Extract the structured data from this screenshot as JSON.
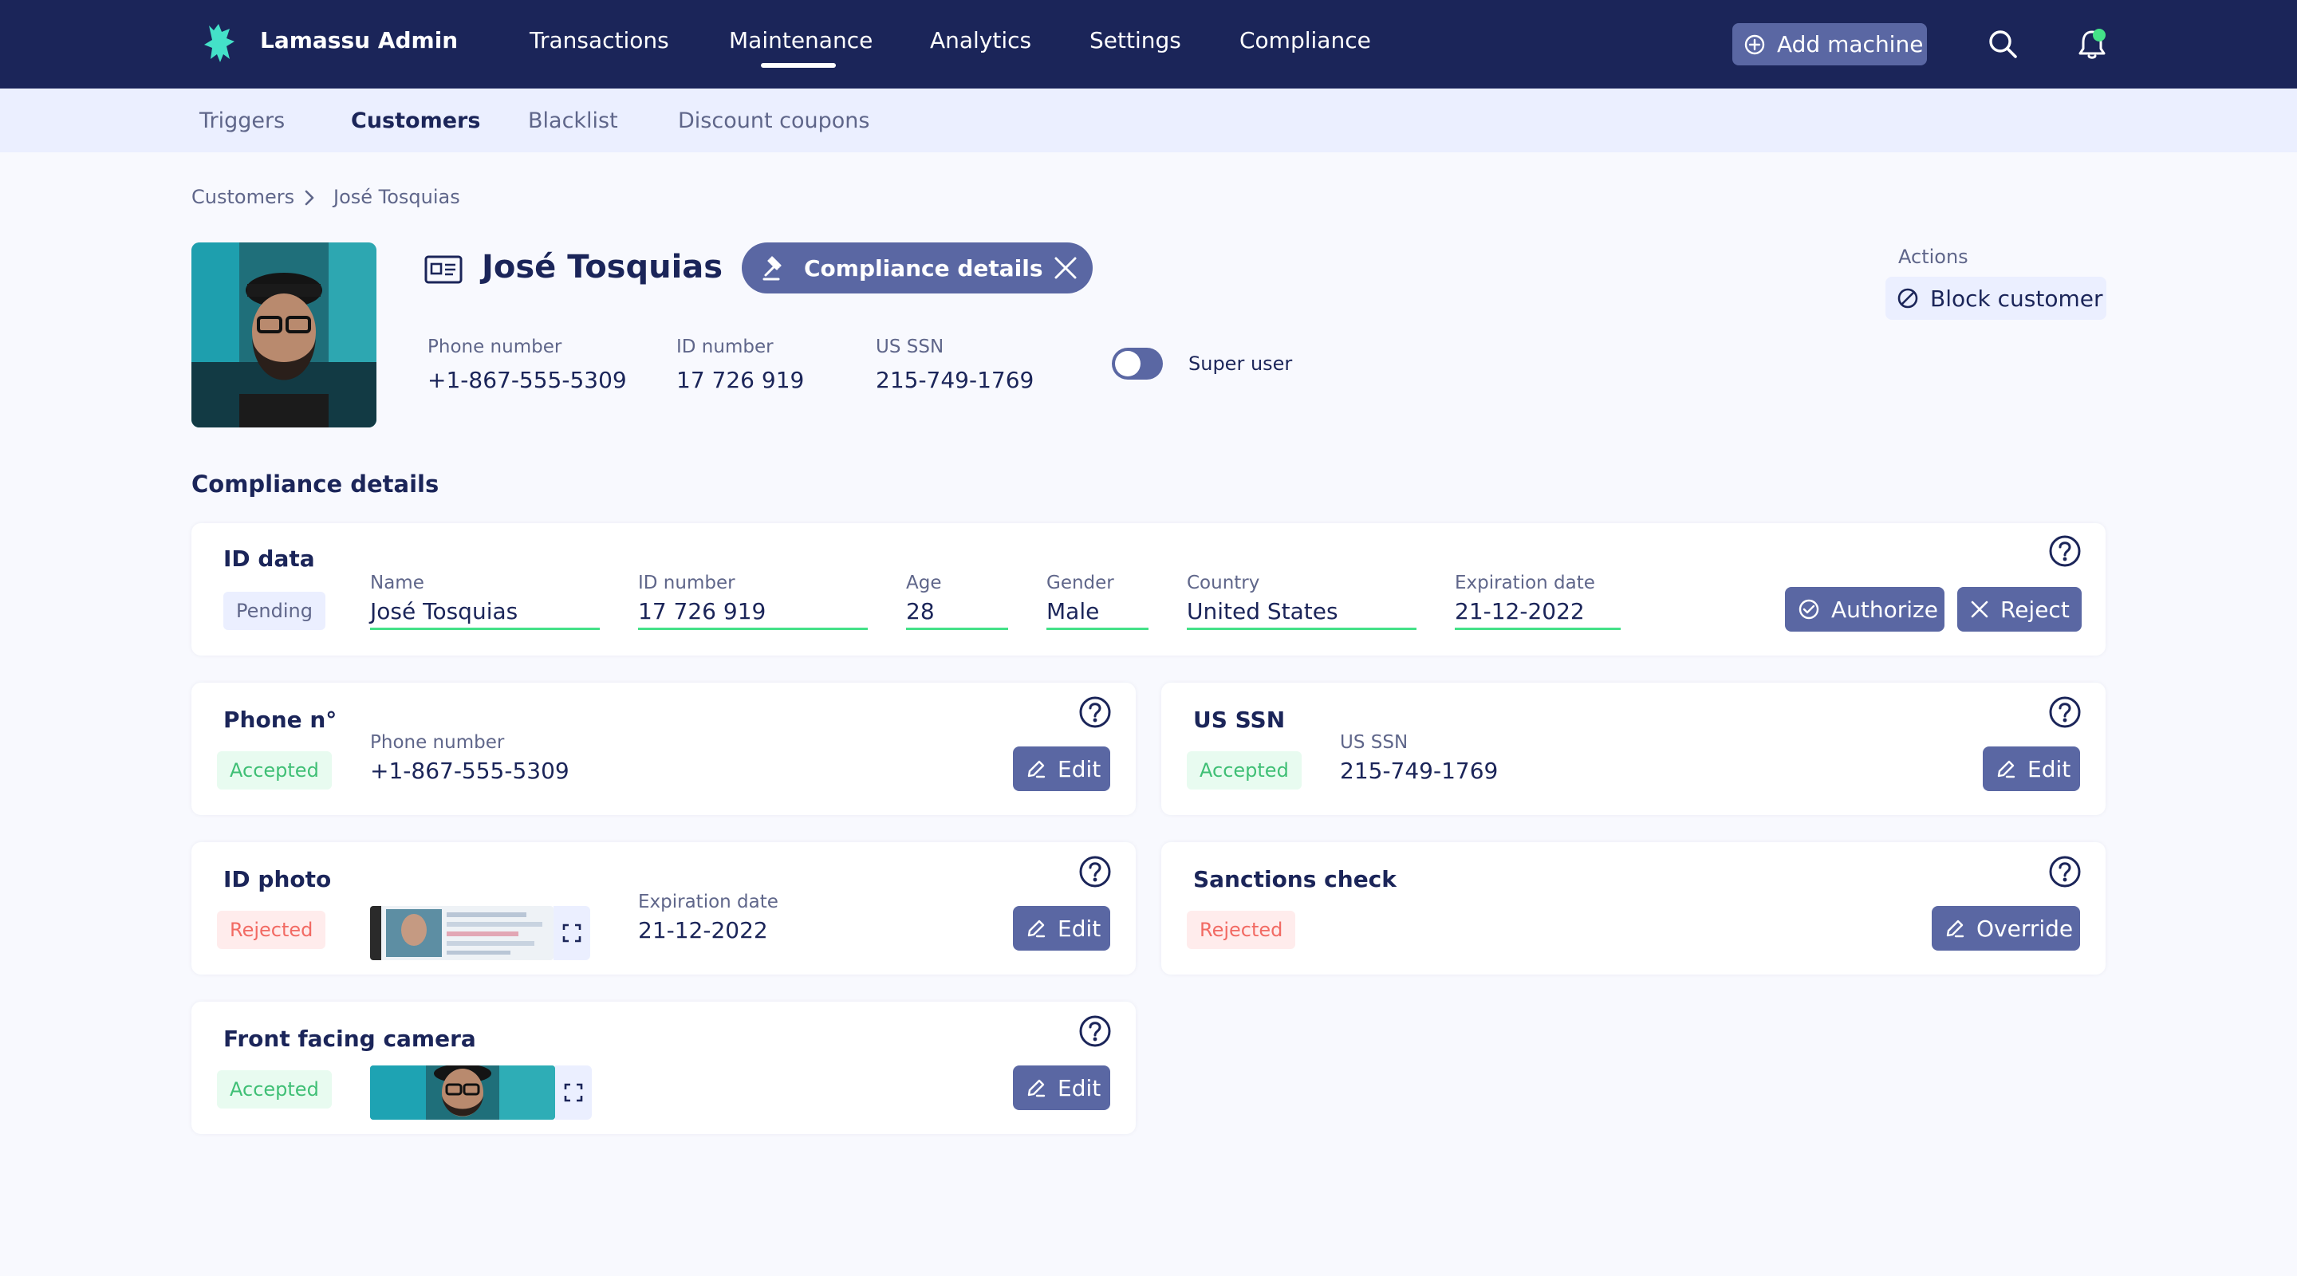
{
  "app": {
    "title": "Lamassu Admin"
  },
  "nav": {
    "items": [
      "Transactions",
      "Maintenance",
      "Analytics",
      "Settings",
      "Compliance"
    ],
    "active": "Maintenance",
    "add_machine_label": "Add machine",
    "notification_dot_color": "#44e188"
  },
  "subnav": {
    "items": [
      "Triggers",
      "Customers",
      "Blacklist",
      "Discount coupons"
    ],
    "active": "Customers"
  },
  "breadcrumb": [
    "Customers",
    "José Tosquias"
  ],
  "customer": {
    "name": "José Tosquias",
    "compliance_chip_label": "Compliance details",
    "phone_label": "Phone number",
    "phone": "+1-867-555-5309",
    "id_label": "ID number",
    "id_number": "17 726 919",
    "ssn_label": "US SSN",
    "ssn": "215-749-1769",
    "super_user_label": "Super user",
    "super_user_enabled": false
  },
  "actions": {
    "label": "Actions",
    "block_label": "Block customer"
  },
  "compliance": {
    "section_title": "Compliance details",
    "id_data": {
      "title": "ID data",
      "status": "Pending",
      "fields": [
        {
          "label": "Name",
          "value": "José Tosquias"
        },
        {
          "label": "ID number",
          "value": "17 726 919"
        },
        {
          "label": "Age",
          "value": "28"
        },
        {
          "label": "Gender",
          "value": "Male"
        },
        {
          "label": "Country",
          "value": "United States"
        },
        {
          "label": "Expiration date",
          "value": "21-12-2022"
        }
      ],
      "authorize_label": "Authorize",
      "reject_label": "Reject"
    },
    "phone": {
      "title": "Phone n°",
      "status": "Accepted",
      "field_label": "Phone number",
      "field_value": "+1-867-555-5309",
      "edit_label": "Edit"
    },
    "us_ssn": {
      "title": "US SSN",
      "status": "Accepted",
      "field_label": "US SSN",
      "field_value": "215-749-1769",
      "edit_label": "Edit"
    },
    "id_photo": {
      "title": "ID photo",
      "status": "Rejected",
      "field_label": "Expiration date",
      "field_value": "21-12-2022",
      "edit_label": "Edit"
    },
    "sanctions": {
      "title": "Sanctions check",
      "status": "Rejected",
      "override_label": "Override"
    },
    "front_camera": {
      "title": "Front facing camera",
      "status": "Accepted",
      "edit_label": "Edit"
    }
  },
  "colors": {
    "nav_bg": "#1b2559",
    "accent": "#5a67a3",
    "success": "#44e188",
    "error": "#f26a63",
    "subnav_bg": "#ebefff"
  }
}
